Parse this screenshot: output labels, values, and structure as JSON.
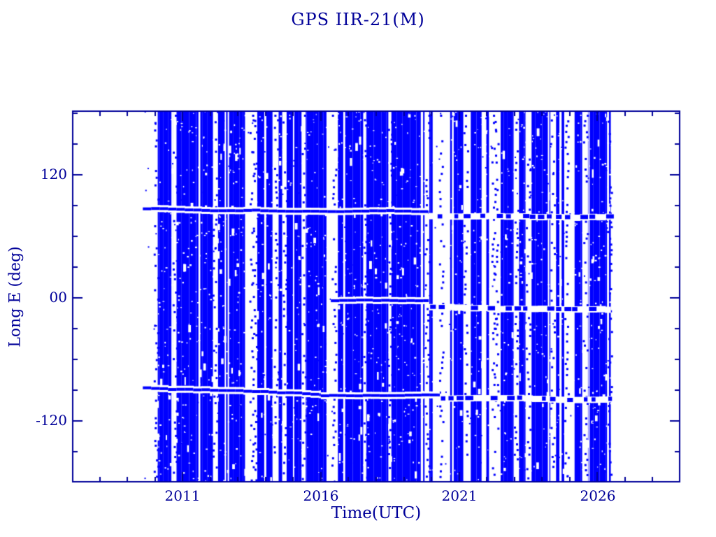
{
  "title": {
    "text": "GPS IIR-21(M)"
  },
  "chart_data": {
    "type": "scatter",
    "title": "GPS IIR-21(M)",
    "xlabel": "Time(UTC)",
    "ylabel": "Long E (deg)",
    "xlim": [
      2007,
      2029
    ],
    "ylim": [
      -180,
      183
    ],
    "x_major_ticks": [
      2011,
      2016,
      2021,
      2026
    ],
    "x_tick_labels": [
      "2011",
      "2016",
      "2021",
      "2026"
    ],
    "x_minor_tick_step_years": 1,
    "y_major_ticks": [
      120,
      0,
      -120
    ],
    "y_tick_labels": [
      "120",
      "00",
      "-120"
    ],
    "y_minor_tick_step_deg": 30,
    "grid": false,
    "legend": false,
    "marker_color": "#0000ff",
    "axis_color": "#000099",
    "background_color": "#ffffff",
    "description": "Sub-satellite longitude (deg E) of GPS IIR-21(M) versus UTC time. The ~12-hour orbit sweeps every longitude daily, so densely sampled points fill the axes as near-solid vertical blue stripes from mid-2009 through mid-2026, broken by data gaps; dense horizontal dwell bands mark slow-drift longitudes of the repeating ground track.",
    "data_start_year": 2009.56,
    "data_end_year": 2026.49,
    "dwell_bands": [
      {
        "from": 2009.56,
        "to": 2019.9,
        "lon_start": 87,
        "lon_end": 85,
        "style": "solid"
      },
      {
        "from": 2019.9,
        "to": 2026.49,
        "lon_start": 80,
        "lon_end": 79,
        "style": "dashed"
      },
      {
        "from": 2009.56,
        "to": 2016.0,
        "lon_start": -88,
        "lon_end": -95,
        "style": "solid"
      },
      {
        "from": 2016.0,
        "to": 2020.3,
        "lon_start": -95,
        "lon_end": -96,
        "style": "solid"
      },
      {
        "from": 2020.3,
        "to": 2026.49,
        "lon_start": -98,
        "lon_end": -99,
        "style": "dashed"
      },
      {
        "from": 2016.36,
        "to": 2019.9,
        "lon_start": -3,
        "lon_end": -4,
        "style": "solid"
      },
      {
        "from": 2019.9,
        "to": 2026.49,
        "lon_start": -9,
        "lon_end": -10,
        "style": "dashed"
      }
    ],
    "gaps": [
      [
        2009.95,
        2010.1
      ],
      [
        2010.65,
        2010.78
      ],
      [
        2012.1,
        2012.28
      ],
      [
        2013.28,
        2013.7
      ],
      [
        2014.25,
        2014.47
      ],
      [
        2014.6,
        2014.76
      ],
      [
        2015.3,
        2015.45
      ],
      [
        2016.38,
        2016.53
      ],
      [
        2017.53,
        2017.64
      ],
      [
        2018.44,
        2018.55
      ],
      [
        2019.75,
        2019.92
      ],
      [
        2020.25,
        2020.48
      ],
      [
        2021.15,
        2021.42
      ],
      [
        2022.08,
        2022.5
      ],
      [
        2022.97,
        2023.16
      ],
      [
        2023.4,
        2023.62
      ],
      [
        2024.3,
        2024.5
      ],
      [
        2024.8,
        2024.93
      ],
      [
        2025.45,
        2025.66
      ],
      [
        2026.35,
        2026.42
      ]
    ],
    "eras": [
      {
        "from": 2009.56,
        "to": 2013.2,
        "gap_chance": 0.16
      },
      {
        "from": 2013.2,
        "to": 2015.6,
        "gap_chance": 0.42
      },
      {
        "from": 2015.6,
        "to": 2019.3,
        "gap_chance": 0.13
      },
      {
        "from": 2019.3,
        "to": 2026.49,
        "gap_chance": 0.3
      }
    ],
    "random_seed": 7
  }
}
